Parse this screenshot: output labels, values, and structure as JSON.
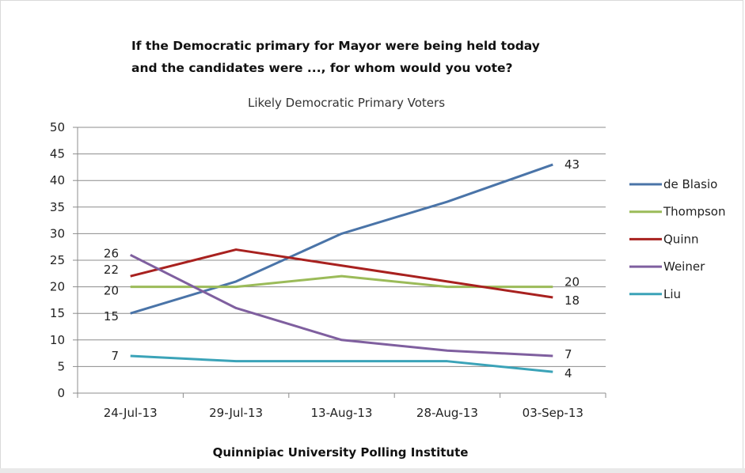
{
  "chart_data": {
    "type": "line",
    "title_lines": [
      "If the Democratic primary for Mayor were being held today",
      "and the candidates were ..., for whom would you vote?"
    ],
    "subtitle": "Likely Democratic Primary Voters",
    "source": "Quinnipiac University Polling Institute",
    "categories": [
      "24-Jul-13",
      "29-Jul-13",
      "13-Aug-13",
      "28-Aug-13",
      "03-Sep-13"
    ],
    "ylim": [
      0,
      50
    ],
    "yticks": [
      0,
      5,
      10,
      15,
      20,
      25,
      30,
      35,
      40,
      45,
      50
    ],
    "grid": true,
    "legend_position": "right",
    "series": [
      {
        "name": "de Blasio",
        "color": "#4a74a8",
        "values": [
          15,
          21,
          30,
          36,
          43
        ],
        "start_label": "15",
        "end_label": "43"
      },
      {
        "name": "Thompson",
        "color": "#9bbb59",
        "values": [
          20,
          20,
          22,
          20,
          20
        ],
        "start_label": "20",
        "end_label": "20"
      },
      {
        "name": "Quinn",
        "color": "#a8211f",
        "values": [
          22,
          27,
          24,
          21,
          18
        ],
        "start_label": "22",
        "end_label": "18"
      },
      {
        "name": "Weiner",
        "color": "#7f5f9f",
        "values": [
          26,
          16,
          10,
          8,
          7
        ],
        "start_label": "26",
        "end_label": "7"
      },
      {
        "name": "Liu",
        "color": "#3ba3b8",
        "values": [
          7,
          6,
          6,
          6,
          4
        ],
        "start_label": "7",
        "end_label": "4"
      }
    ]
  }
}
